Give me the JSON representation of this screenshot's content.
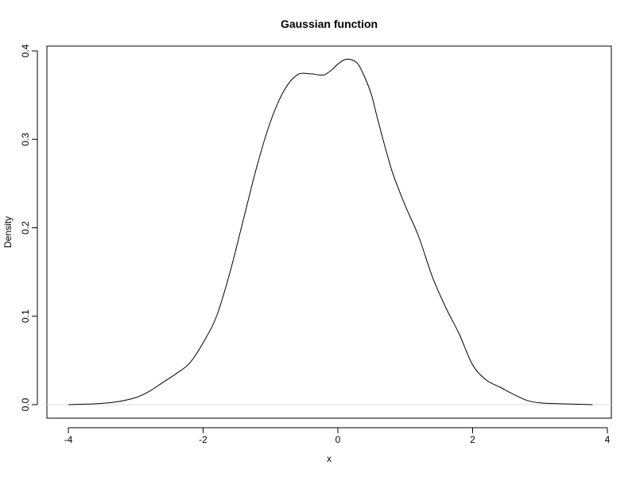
{
  "chart_data": {
    "type": "line",
    "title": "Gaussian function",
    "xlabel": "x",
    "ylabel": "Density",
    "xlim": [
      -4.0,
      3.78
    ],
    "ylim": [
      -0.015,
      0.405
    ],
    "x_ticks": [
      -4,
      -2,
      0,
      2,
      4
    ],
    "x_tick_labels": [
      "-4",
      "-2",
      "0",
      "2",
      "4"
    ],
    "y_ticks": [
      0.0,
      0.1,
      0.2,
      0.3,
      0.4
    ],
    "y_tick_labels": [
      "0.0",
      "0.1",
      "0.2",
      "0.3",
      "0.4"
    ],
    "grid": false,
    "zero_reference_line": true,
    "series": [
      {
        "x": [
          -4.0,
          -3.6,
          -3.3,
          -3.0,
          -2.8,
          -2.6,
          -2.4,
          -2.2,
          -2.0,
          -1.8,
          -1.6,
          -1.4,
          -1.2,
          -1.0,
          -0.8,
          -0.6,
          -0.4,
          -0.3,
          -0.2,
          -0.1,
          0.0,
          0.1,
          0.2,
          0.3,
          0.4,
          0.5,
          0.6,
          0.8,
          1.0,
          1.2,
          1.4,
          1.6,
          1.8,
          2.0,
          2.2,
          2.4,
          2.6,
          2.8,
          3.0,
          3.3,
          3.78
        ],
        "y": [
          0.0,
          0.001,
          0.003,
          0.008,
          0.015,
          0.025,
          0.035,
          0.047,
          0.07,
          0.1,
          0.15,
          0.21,
          0.27,
          0.32,
          0.355,
          0.373,
          0.374,
          0.373,
          0.373,
          0.378,
          0.385,
          0.39,
          0.39,
          0.385,
          0.37,
          0.35,
          0.32,
          0.265,
          0.225,
          0.19,
          0.145,
          0.11,
          0.08,
          0.045,
          0.028,
          0.02,
          0.012,
          0.005,
          0.002,
          0.001,
          0.0
        ]
      }
    ]
  }
}
